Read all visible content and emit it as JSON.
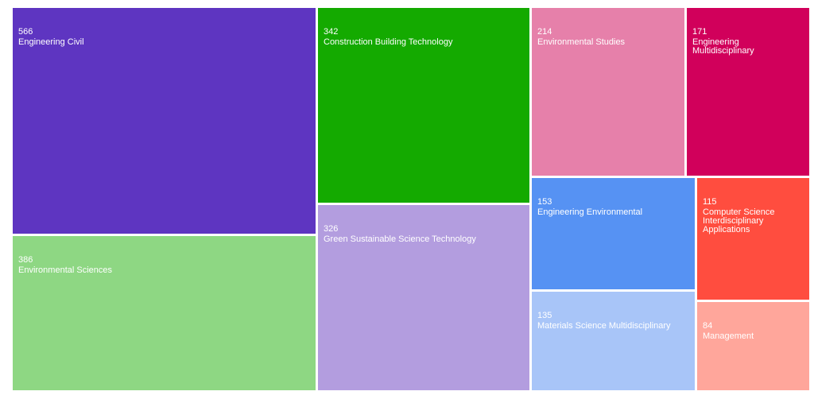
{
  "chart_data": {
    "type": "treemap",
    "title": "",
    "items": [
      {
        "name": "Engineering Civil",
        "value": 566,
        "color": "#5e35c1"
      },
      {
        "name": "Environmental Sciences",
        "value": 386,
        "color": "#8ed783"
      },
      {
        "name": "Construction Building Technology",
        "value": 342,
        "color": "#14aa00"
      },
      {
        "name": "Green Sustainable Science Technology",
        "value": 326,
        "color": "#b39ddf"
      },
      {
        "name": "Environmental Studies",
        "value": 214,
        "color": "#e680aa"
      },
      {
        "name": "Engineering\nMultidisciplinary",
        "value": 171,
        "color": "#d1005b"
      },
      {
        "name": "Engineering Environmental",
        "value": 153,
        "color": "#5692f3"
      },
      {
        "name": "Materials Science Multidisciplinary",
        "value": 135,
        "color": "#a8c5f8"
      },
      {
        "name": "Computer Science\nInterdisciplinary\nApplications",
        "value": 115,
        "color": "#ff4d3f"
      },
      {
        "name": "Management",
        "value": 84,
        "color": "#ffa69b"
      }
    ]
  }
}
